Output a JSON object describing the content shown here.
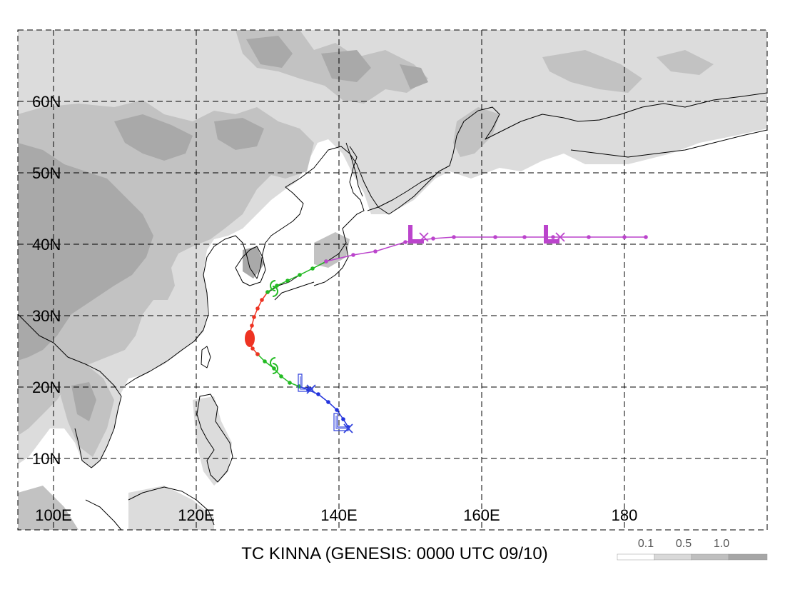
{
  "map": {
    "title": "TC KINNA (GENESIS: 0000 UTC 09/10)",
    "lat_labels": [
      "60N",
      "50N",
      "40N",
      "30N",
      "20N",
      "10N"
    ],
    "lon_labels": [
      "100E",
      "120E",
      "140E",
      "160E",
      "180"
    ],
    "legend": {
      "labels": [
        "0.1",
        "0.5",
        "1.0"
      ],
      "colors": [
        "#ffffff",
        "#d9d9d9",
        "#bfbfbf",
        "#a6a6a6"
      ]
    },
    "shade_colors": {
      "light": "#dcdcdc",
      "medium": "#c2c2c2",
      "dark": "#a9a9a9"
    },
    "track": {
      "segments": [
        {
          "color": "#2233dd",
          "points": [
            [
              141.3,
              14.4
            ],
            [
              140.6,
              15.5
            ],
            [
              139.7,
              16.8
            ],
            [
              138.5,
              17.9
            ],
            [
              137.1,
              19.0
            ],
            [
              135.7,
              19.6
            ],
            [
              134.4,
              20.1
            ]
          ]
        },
        {
          "color": "#22bb22",
          "points": [
            [
              134.4,
              20.1
            ],
            [
              133.1,
              20.6
            ],
            [
              131.9,
              21.5
            ],
            [
              130.9,
              22.6
            ],
            [
              129.6,
              23.6
            ],
            [
              128.6,
              24.6
            ]
          ]
        },
        {
          "color": "#ee3322",
          "points": [
            [
              128.6,
              24.6
            ],
            [
              127.9,
              25.4
            ],
            [
              127.4,
              26.3
            ],
            [
              127.5,
              27.5
            ],
            [
              127.8,
              28.6
            ],
            [
              128.1,
              29.8
            ],
            [
              128.6,
              31.0
            ],
            [
              129.2,
              32.2
            ],
            [
              130.0,
              33.3
            ]
          ]
        },
        {
          "color": "#22bb22",
          "points": [
            [
              130.0,
              33.3
            ],
            [
              131.3,
              34.2
            ],
            [
              132.8,
              34.9
            ],
            [
              134.5,
              35.7
            ],
            [
              136.3,
              36.6
            ],
            [
              138.2,
              37.6
            ]
          ]
        },
        {
          "color": "#bb44cc",
          "points": [
            [
              138.2,
              37.6
            ],
            [
              142.0,
              38.5
            ],
            [
              145.1,
              39.0
            ],
            [
              149.3,
              40.3
            ],
            [
              153.2,
              40.8
            ],
            [
              156.1,
              41.0
            ],
            [
              161.9,
              41.0
            ],
            [
              166.0,
              41.0
            ],
            [
              170.0,
              41.0
            ],
            [
              175.0,
              41.0
            ],
            [
              180.0,
              41.0
            ],
            [
              183.0,
              41.0
            ]
          ]
        }
      ],
      "markers": [
        {
          "type": "low",
          "color": "#3344dd",
          "lon": 140.3,
          "lat": 14.7,
          "style": "outline"
        },
        {
          "type": "low",
          "color": "#3344dd",
          "lon": 135.3,
          "lat": 20.2,
          "style": "outline"
        },
        {
          "type": "storm",
          "color": "#22bb22",
          "lon": 130.9,
          "lat": 23.0
        },
        {
          "type": "storm",
          "color": "#22bb22",
          "lon": 130.9,
          "lat": 33.8
        },
        {
          "type": "low",
          "color": "#bb44cc",
          "lon": 150.7,
          "lat": 40.9,
          "style": "solid"
        },
        {
          "type": "low",
          "color": "#bb44cc",
          "lon": 169.7,
          "lat": 40.9,
          "style": "solid"
        }
      ],
      "crosses": [
        {
          "color": "#3344dd",
          "lon": 141.3,
          "lat": 14.2
        },
        {
          "color": "#3344dd",
          "lon": 136.1,
          "lat": 19.7
        },
        {
          "color": "#bb44cc",
          "lon": 151.9,
          "lat": 41.0
        },
        {
          "color": "#bb44cc",
          "lon": 171.0,
          "lat": 41.0
        }
      ]
    }
  }
}
